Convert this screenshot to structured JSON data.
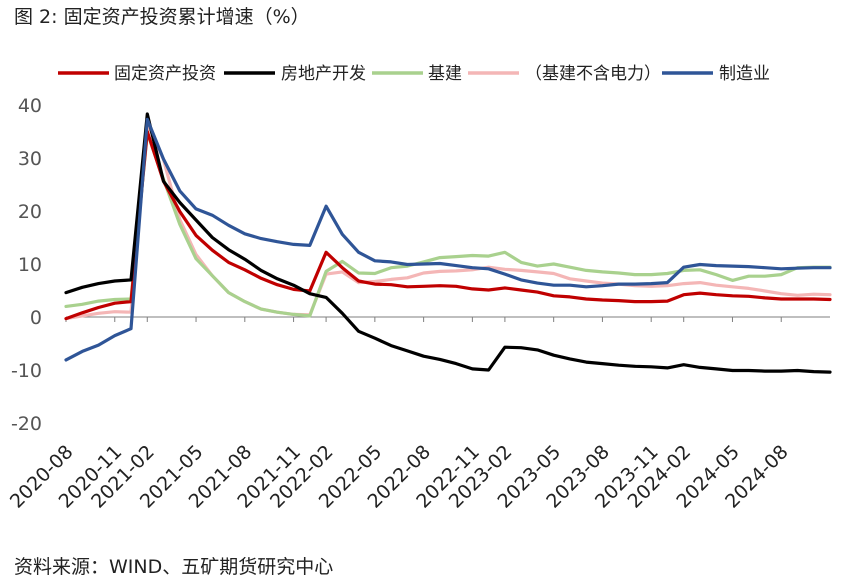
{
  "title": "图 2:  固定资产投资累计增速（%）",
  "source": "资料来源：WIND、五矿期货研究中心",
  "chart_data": {
    "type": "line",
    "title": "图 2:  固定资产投资累计增速（%）",
    "ylim": [
      -20,
      40
    ],
    "yticks": [
      -20,
      -10,
      0,
      10,
      20,
      30,
      40
    ],
    "xticks": [
      "2020-08",
      "2020-11",
      "2021-02",
      "2021-05",
      "2021-08",
      "2021-11",
      "2022-02",
      "2022-05",
      "2022-08",
      "2022-11",
      "2023-02",
      "2023-05",
      "2023-08",
      "2023-11",
      "2024-02",
      "2024-05",
      "2024-08"
    ],
    "x": [
      "2020-08",
      "2020-09",
      "2020-10",
      "2020-11",
      "2020-12",
      "2021-02",
      "2021-03",
      "2021-04",
      "2021-05",
      "2021-06",
      "2021-07",
      "2021-08",
      "2021-09",
      "2021-10",
      "2021-11",
      "2021-12",
      "2022-02",
      "2022-03",
      "2022-04",
      "2022-05",
      "2022-06",
      "2022-07",
      "2022-08",
      "2022-09",
      "2022-10",
      "2022-11",
      "2022-12",
      "2023-02",
      "2023-03",
      "2023-04",
      "2023-05",
      "2023-06",
      "2023-07",
      "2023-08",
      "2023-09",
      "2023-10",
      "2023-11",
      "2023-12",
      "2024-02",
      "2024-03",
      "2024-04",
      "2024-05",
      "2024-06",
      "2024-07",
      "2024-08",
      "2024-09",
      "2024-10",
      "2024-11"
    ],
    "grid": false,
    "legend_position": "top",
    "series": [
      {
        "name": "固定资产投资",
        "color": "#c00000",
        "values": [
          -0.3,
          0.8,
          1.8,
          2.6,
          2.9,
          35.0,
          25.6,
          19.9,
          15.4,
          12.6,
          10.3,
          8.9,
          7.3,
          6.1,
          5.2,
          4.9,
          12.2,
          9.3,
          6.8,
          6.2,
          6.1,
          5.7,
          5.8,
          5.9,
          5.8,
          5.3,
          5.1,
          5.5,
          5.1,
          4.7,
          4.0,
          3.8,
          3.4,
          3.2,
          3.1,
          2.9,
          2.9,
          3.0,
          4.2,
          4.5,
          4.2,
          4.0,
          3.9,
          3.6,
          3.4,
          3.4,
          3.4,
          3.3
        ]
      },
      {
        "name": "房地产开发",
        "color": "#000000",
        "values": [
          4.6,
          5.6,
          6.3,
          6.8,
          7.0,
          38.3,
          25.6,
          21.6,
          18.3,
          15.0,
          12.7,
          10.9,
          8.8,
          7.2,
          6.0,
          4.4,
          3.7,
          0.7,
          -2.7,
          -4.0,
          -5.4,
          -6.4,
          -7.4,
          -8.0,
          -8.8,
          -9.8,
          -10.0,
          -5.7,
          -5.8,
          -6.2,
          -7.2,
          -7.9,
          -8.5,
          -8.8,
          -9.1,
          -9.3,
          -9.4,
          -9.6,
          -9.0,
          -9.5,
          -9.8,
          -10.1,
          -10.1,
          -10.2,
          -10.2,
          -10.1,
          -10.3,
          -10.4
        ]
      },
      {
        "name": "基建",
        "color": "#a9d18e",
        "values": [
          2.0,
          2.4,
          3.0,
          3.3,
          3.4,
          34.7,
          26.0,
          17.5,
          11.0,
          7.8,
          4.6,
          2.9,
          1.5,
          0.9,
          0.5,
          0.2,
          8.6,
          10.5,
          8.3,
          8.2,
          9.3,
          9.6,
          10.4,
          11.2,
          11.4,
          11.6,
          11.5,
          12.2,
          10.3,
          9.6,
          10.0,
          9.4,
          8.8,
          8.5,
          8.3,
          8.0,
          8.0,
          8.2,
          8.8,
          8.9,
          8.0,
          6.9,
          7.7,
          7.7,
          8.0,
          9.3,
          9.4,
          9.4
        ]
      },
      {
        "name": "（基建不含电力）",
        "color": "#f4b6b6",
        "values": [
          -0.3,
          0.2,
          0.7,
          1.0,
          0.9,
          36.6,
          29.7,
          18.4,
          11.8,
          7.8,
          4.6,
          2.9,
          1.5,
          0.9,
          0.5,
          0.4,
          8.1,
          8.5,
          6.5,
          6.7,
          7.1,
          7.4,
          8.3,
          8.6,
          8.7,
          8.9,
          9.4,
          9.0,
          8.8,
          8.5,
          8.2,
          7.2,
          6.8,
          6.4,
          6.2,
          5.9,
          5.8,
          5.9,
          6.3,
          6.5,
          6.0,
          5.7,
          5.4,
          4.9,
          4.4,
          4.1,
          4.3,
          4.2
        ]
      },
      {
        "name": "制造业",
        "color": "#2f5597",
        "values": [
          -8.1,
          -6.5,
          -5.3,
          -3.5,
          -2.2,
          37.3,
          29.8,
          23.8,
          20.4,
          19.2,
          17.3,
          15.7,
          14.8,
          14.2,
          13.7,
          13.5,
          20.9,
          15.6,
          12.2,
          10.6,
          10.4,
          9.9,
          10.0,
          10.1,
          9.7,
          9.3,
          9.1,
          8.1,
          7.0,
          6.4,
          6.0,
          6.0,
          5.7,
          5.9,
          6.2,
          6.2,
          6.3,
          6.5,
          9.4,
          9.9,
          9.7,
          9.6,
          9.5,
          9.3,
          9.1,
          9.2,
          9.3,
          9.3
        ]
      }
    ]
  }
}
